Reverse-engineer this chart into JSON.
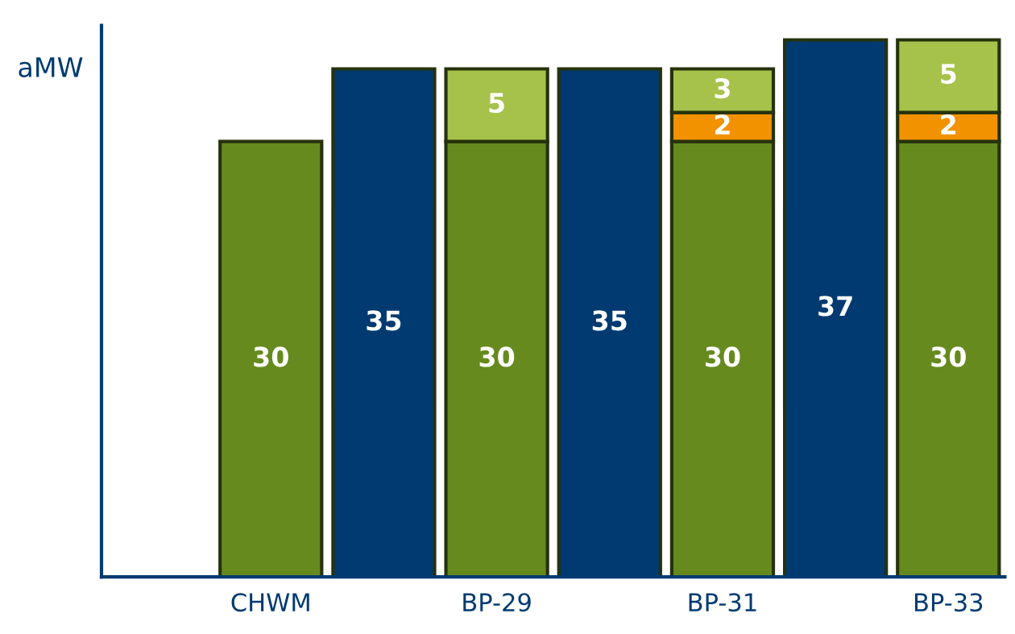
{
  "chart_data": {
    "type": "bar",
    "ylabel": "aMW",
    "categories": [
      null,
      "CHWM",
      null,
      "BP-29",
      null,
      "BP-31",
      null,
      "BP-33"
    ],
    "stacked": true,
    "data_labels": true,
    "tick_labels": "x",
    "ylim": [
      0,
      38
    ],
    "series": [
      {
        "color": "#003a70",
        "values": [
          null,
          null,
          35,
          null,
          35,
          null,
          37,
          null
        ]
      },
      {
        "color": "#668a1e",
        "values": [
          null,
          30,
          null,
          30,
          null,
          30,
          null,
          30
        ]
      },
      {
        "color": "#f39200",
        "values": [
          null,
          null,
          null,
          null,
          null,
          2,
          null,
          2
        ]
      },
      {
        "color": "#a6c24a",
        "values": [
          null,
          null,
          null,
          5,
          null,
          3,
          null,
          5
        ]
      }
    ]
  }
}
